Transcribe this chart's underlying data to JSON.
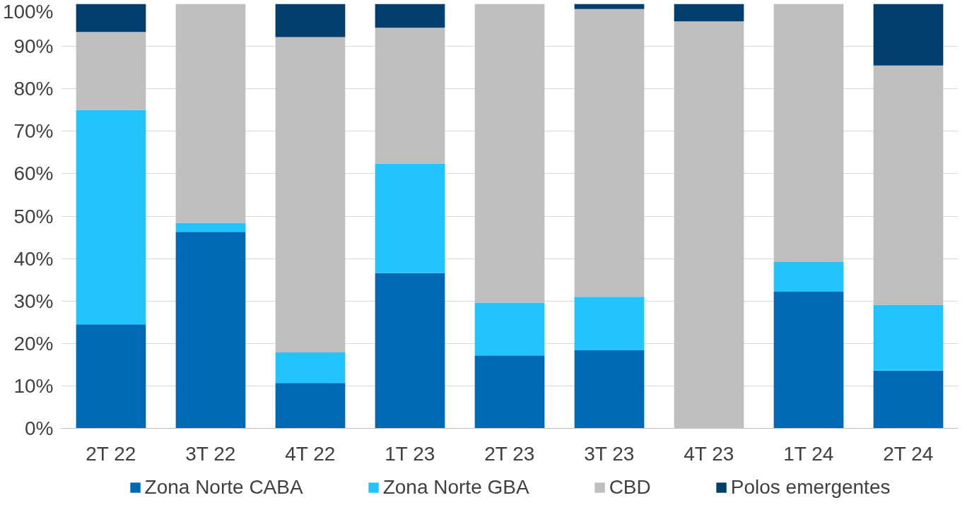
{
  "chart_data": {
    "type": "bar",
    "stacked": true,
    "categories": [
      "2T 22",
      "3T 22",
      "4T 22",
      "1T 23",
      "2T 23",
      "3T 23",
      "4T 23",
      "1T 24",
      "2T 24"
    ],
    "series": [
      {
        "name": "Zona Norte CABA",
        "color": "#0069b4",
        "values": [
          24.5,
          46.3,
          10.7,
          36.6,
          17.2,
          18.4,
          0,
          32.2,
          13.6
        ]
      },
      {
        "name": "Zona Norte GBA",
        "color": "#21c4ff",
        "values": [
          50.5,
          2.1,
          7.2,
          25.8,
          12.4,
          12.6,
          0,
          7.0,
          15.5
        ]
      },
      {
        "name": "CBD",
        "color": "#bfbfbf",
        "values": [
          18.4,
          51.6,
          74.3,
          32.0,
          70.4,
          67.8,
          95.9,
          60.8,
          56.4
        ]
      },
      {
        "name": "Polos emergentes",
        "color": "#003f6d",
        "values": [
          6.6,
          0,
          7.8,
          5.6,
          0,
          1.2,
          4.1,
          0,
          14.5
        ]
      }
    ],
    "ylim": [
      0,
      100
    ],
    "yticks": [
      {
        "value": 0,
        "label": "0%"
      },
      {
        "value": 10,
        "label": "10%"
      },
      {
        "value": 20,
        "label": "20%"
      },
      {
        "value": 30,
        "label": "30%"
      },
      {
        "value": 40,
        "label": "40%"
      },
      {
        "value": 50,
        "label": "50%"
      },
      {
        "value": 60,
        "label": "60%"
      },
      {
        "value": 70,
        "label": "70%"
      },
      {
        "value": 80,
        "label": "80%"
      },
      {
        "value": 90,
        "label": "90%"
      },
      {
        "value": 100,
        "label": "100%"
      }
    ],
    "grid": "y",
    "legend": "bottom"
  }
}
